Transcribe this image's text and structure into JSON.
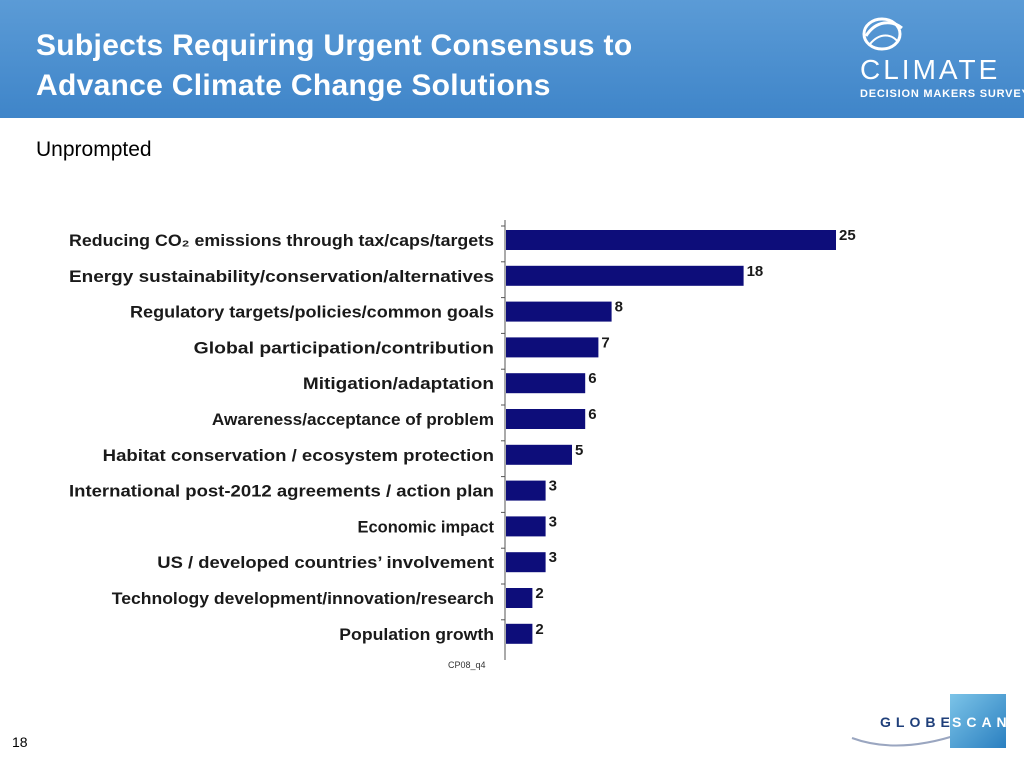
{
  "header": {
    "title_line1": "Subjects Requiring Urgent Consensus to",
    "title_line2": "Advance Climate Change Solutions",
    "brand_word": "CLIMATE",
    "brand_sub": "DECISION MAKERS SURVEY",
    "background_color": "#4a8fd0"
  },
  "subtitle": "Unprompted",
  "source_note": "CP08_q4",
  "page_number": "18",
  "footer_logo": {
    "word_left": "GLOBE",
    "word_right": "SCAN"
  },
  "chart_data": {
    "type": "bar",
    "orientation": "horizontal",
    "bar_color": "#0d0d7a",
    "categories": [
      "Reducing CO₂ emissions through tax/caps/targets",
      "Energy sustainability/conservation/alternatives",
      "Regulatory targets/policies/common goals",
      "Global participation/contribution",
      "Mitigation/adaptation",
      "Awareness/acceptance of problem",
      "Habitat conservation / ecosystem protection",
      "International post-2012 agreements / action plan",
      "Economic impact",
      "US / developed countries’ involvement",
      "Technology development/innovation/research",
      "Population growth"
    ],
    "values": [
      25,
      18,
      8,
      7,
      6,
      6,
      5,
      3,
      3,
      3,
      2,
      2
    ],
    "data_labels": [
      "25",
      "18",
      "8",
      "7",
      "6",
      "6",
      "5",
      "3",
      "3",
      "3",
      "2",
      "2"
    ],
    "xlim": [
      0,
      25
    ],
    "grid": false,
    "legend": "none"
  }
}
